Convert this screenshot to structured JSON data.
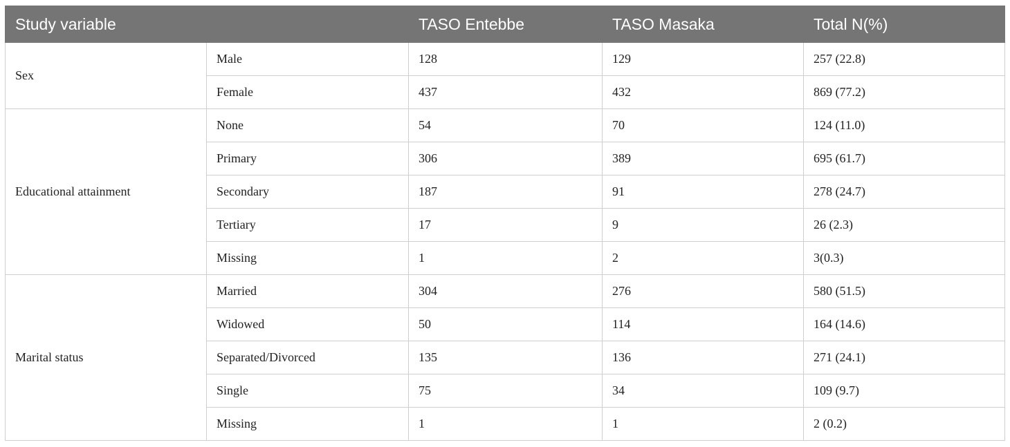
{
  "table": {
    "headers": [
      "Study variable",
      "TASO Entebbe",
      "TASO Masaka",
      "Total N(%)"
    ],
    "groups": [
      {
        "variable": "Sex",
        "rows": [
          {
            "category": "Male",
            "entebbe": "128",
            "masaka": "129",
            "total": "257 (22.8)"
          },
          {
            "category": "Female",
            "entebbe": "437",
            "masaka": "432",
            "total": "869 (77.2)"
          }
        ]
      },
      {
        "variable": "Educational attainment",
        "rows": [
          {
            "category": "None",
            "entebbe": "54",
            "masaka": "70",
            "total": "124 (11.0)"
          },
          {
            "category": "Primary",
            "entebbe": "306",
            "masaka": "389",
            "total": "695 (61.7)"
          },
          {
            "category": "Secondary",
            "entebbe": "187",
            "masaka": "91",
            "total": "278 (24.7)"
          },
          {
            "category": "Tertiary",
            "entebbe": "17",
            "masaka": "9",
            "total": "26 (2.3)"
          },
          {
            "category": "Missing",
            "entebbe": "1",
            "masaka": "2",
            "total": "3(0.3)"
          }
        ]
      },
      {
        "variable": "Marital status",
        "rows": [
          {
            "category": "Married",
            "entebbe": "304",
            "masaka": "276",
            "total": "580 (51.5)"
          },
          {
            "category": "Widowed",
            "entebbe": "50",
            "masaka": "114",
            "total": "164 (14.6)"
          },
          {
            "category": "Separated/Divorced",
            "entebbe": "135",
            "masaka": "136",
            "total": "271 (24.1)"
          },
          {
            "category": "Single",
            "entebbe": "75",
            "masaka": "34",
            "total": "109 (9.7)"
          },
          {
            "category": "Missing",
            "entebbe": "1",
            "masaka": "1",
            "total": "2 (0.2)"
          }
        ]
      }
    ]
  }
}
